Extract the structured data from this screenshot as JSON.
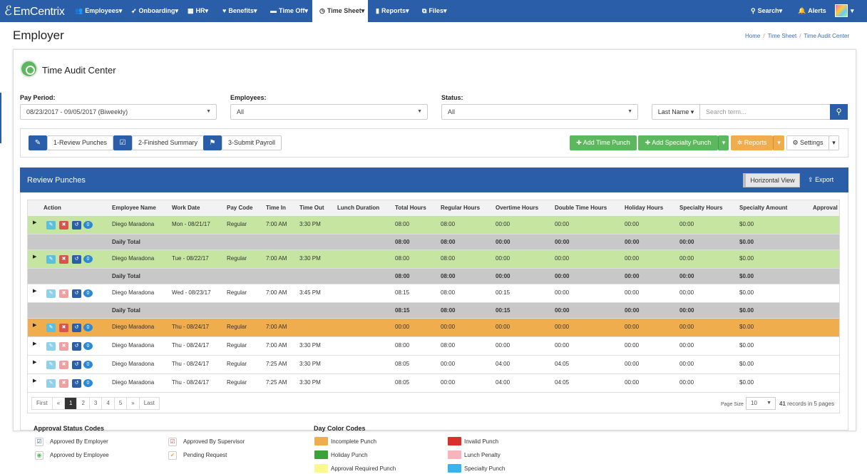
{
  "nav": {
    "logo": "EmCentrix",
    "items": [
      "Employees",
      "Onboarding",
      "HR",
      "Benefits",
      "Time Off",
      "Time Sheet",
      "Reports",
      "Files"
    ],
    "search": "Search",
    "alerts": "Alerts"
  },
  "page": {
    "title": "Employer"
  },
  "breadcrumb": [
    "Home",
    "Time Sheet",
    "Time Audit Center"
  ],
  "section_title": "Time Audit Center",
  "filters": {
    "pay_period_label": "Pay Period:",
    "pay_period_value": "08/23/2017 - 09/05/2017 (Biweekly)",
    "employees_label": "Employees:",
    "employees_value": "All",
    "status_label": "Status:",
    "status_value": "All",
    "search_by": "Last Name",
    "search_placeholder": "Search term..."
  },
  "steps": [
    "1-Review Punches",
    "2-Finished Summary",
    "3-Submit Payroll"
  ],
  "actions": {
    "add_time_punch": "Add Time Punch",
    "add_specialty_punch": "Add Specialty Punch",
    "reports": "Reports",
    "settings": "Settings"
  },
  "review": {
    "title": "Review Punches",
    "horizontal_view": "Horizontal View",
    "export": "Export"
  },
  "table": {
    "columns": [
      "Action",
      "Employee Name",
      "Work Date",
      "Pay Code",
      "Time In",
      "Time Out",
      "Lunch Duration",
      "Total Hours",
      "Regular Hours",
      "Overtime Hours",
      "Double Time Hours",
      "Holiday Hours",
      "Specialty Hours",
      "Specialty Amount",
      "Approval"
    ],
    "rows": [
      {
        "kind": "punch",
        "color": "#c5e5a0",
        "name": "Diego Maradona",
        "date": "Mon - 08/21/17",
        "code": "Regular",
        "in": "7:00 AM",
        "out": "3:30 PM",
        "lunch": "",
        "total": "08:00",
        "regular": "08:00",
        "ot": "00:00",
        "dt": "00:00",
        "holiday": "00:00",
        "spec_h": "00:00",
        "spec_a": "$0.00"
      },
      {
        "kind": "total",
        "label": "Daily Total",
        "total": "08:00",
        "regular": "08:00",
        "ot": "00:00",
        "dt": "00:00",
        "holiday": "00:00",
        "spec_h": "00:00",
        "spec_a": "$0.00"
      },
      {
        "kind": "punch",
        "color": "#c5e5a0",
        "name": "Diego Maradona",
        "date": "Tue - 08/22/17",
        "code": "Regular",
        "in": "7:00 AM",
        "out": "3:30 PM",
        "lunch": "",
        "total": "08:00",
        "regular": "08:00",
        "ot": "00:00",
        "dt": "00:00",
        "holiday": "00:00",
        "spec_h": "00:00",
        "spec_a": "$0.00"
      },
      {
        "kind": "total",
        "label": "Daily Total",
        "total": "08:00",
        "regular": "08:00",
        "ot": "00:00",
        "dt": "00:00",
        "holiday": "00:00",
        "spec_h": "00:00",
        "spec_a": "$0.00"
      },
      {
        "kind": "punch",
        "color": "#ffffff",
        "name": "Diego Maradona",
        "date": "Wed - 08/23/17",
        "code": "Regular",
        "in": "7:00 AM",
        "out": "3:45 PM",
        "lunch": "",
        "total": "08:15",
        "regular": "08:00",
        "ot": "00:15",
        "dt": "00:00",
        "holiday": "00:00",
        "spec_h": "00:00",
        "spec_a": "$0.00"
      },
      {
        "kind": "total",
        "label": "Daily Total",
        "total": "08:15",
        "regular": "08:00",
        "ot": "00:15",
        "dt": "00:00",
        "holiday": "00:00",
        "spec_h": "00:00",
        "spec_a": "$0.00"
      },
      {
        "kind": "punch",
        "color": "#f0ad4e",
        "name": "Diego Maradona",
        "date": "Thu - 08/24/17",
        "code": "Regular",
        "in": "7:00 AM",
        "out": "",
        "lunch": "",
        "total": "00:00",
        "regular": "00:00",
        "ot": "00:00",
        "dt": "00:00",
        "holiday": "00:00",
        "spec_h": "00:00",
        "spec_a": "$0.00"
      },
      {
        "kind": "punch",
        "color": "#ffffff",
        "name": "Diego Maradona",
        "date": "Thu - 08/24/17",
        "code": "Regular",
        "in": "7:00 AM",
        "out": "3:30 PM",
        "lunch": "",
        "total": "08:00",
        "regular": "08:00",
        "ot": "00:00",
        "dt": "00:00",
        "holiday": "00:00",
        "spec_h": "00:00",
        "spec_a": "$0.00"
      },
      {
        "kind": "punch",
        "color": "#ffffff",
        "name": "Diego Maradona",
        "date": "Thu - 08/24/17",
        "code": "Regular",
        "in": "7:25 AM",
        "out": "3:30 PM",
        "lunch": "",
        "total": "08:05",
        "regular": "00:00",
        "ot": "04:00",
        "dt": "04:05",
        "holiday": "00:00",
        "spec_h": "00:00",
        "spec_a": "$0.00"
      },
      {
        "kind": "punch",
        "color": "#ffffff",
        "name": "Diego Maradona",
        "date": "Thu - 08/24/17",
        "code": "Regular",
        "in": "7:25 AM",
        "out": "3:30 PM",
        "lunch": "",
        "total": "08:05",
        "regular": "00:00",
        "ot": "04:00",
        "dt": "04:05",
        "holiday": "00:00",
        "spec_h": "00:00",
        "spec_a": "$0.00"
      }
    ]
  },
  "pagination": {
    "items": [
      "First",
      "«",
      "1",
      "2",
      "3",
      "4",
      "5",
      "»",
      "Last"
    ],
    "active": "1",
    "page_size_label": "Page Size",
    "page_size": "10",
    "records_count": "41",
    "records_suffix": "records in 5 pages"
  },
  "legend": {
    "approval_title": "Approval Status Codes",
    "approval": [
      "Approved By Employer",
      "Approved By Supervisor",
      "Approved by Employee",
      "Pending Request"
    ],
    "color_title": "Day Color Codes",
    "colors": [
      {
        "label": "Incomplete Punch",
        "color": "#f0ad4e"
      },
      {
        "label": "Invalid Punch",
        "color": "#d9302c"
      },
      {
        "label": "Holiday Punch",
        "color": "#3aa23a"
      },
      {
        "label": "Lunch Penalty",
        "color": "#f7b4bd"
      },
      {
        "label": "Approval Required Punch",
        "color": "#fafa8c"
      },
      {
        "label": "Specialty Punch",
        "color": "#35b4ef"
      }
    ]
  }
}
